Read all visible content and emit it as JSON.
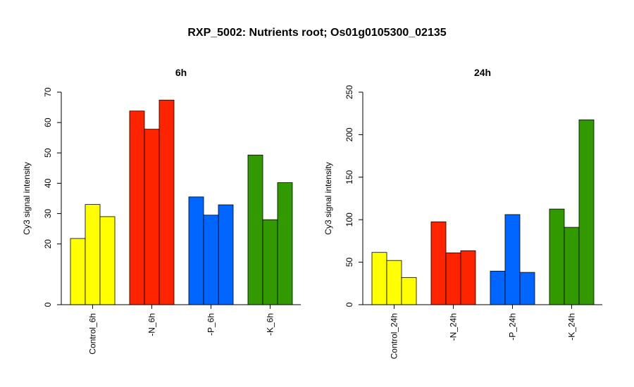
{
  "title": "RXP_5002: Nutrients root; Os01g0105300_02135",
  "chart_data": [
    {
      "type": "bar",
      "title": "6h",
      "ylabel": "Cy3 signal intensity",
      "ylim": [
        0,
        70
      ],
      "yticks": [
        0,
        20,
        30,
        40,
        50,
        60,
        70
      ],
      "groups": [
        {
          "label": "Control_6h",
          "color": "#ffff00",
          "values": [
            21.8,
            33.0,
            29.0
          ]
        },
        {
          "label": "-N_6h",
          "color": "#ff2400",
          "values": [
            63.8,
            57.8,
            67.4
          ]
        },
        {
          "label": "-P_6h",
          "color": "#0066ff",
          "values": [
            35.5,
            29.5,
            32.9
          ]
        },
        {
          "label": "-K_6h",
          "color": "#339900",
          "values": [
            49.3,
            28.0,
            40.2
          ]
        }
      ]
    },
    {
      "type": "bar",
      "title": "24h",
      "ylabel": "Cy3 signal intensity",
      "ylim": [
        0,
        250
      ],
      "yticks": [
        0,
        50,
        100,
        150,
        200,
        250
      ],
      "groups": [
        {
          "label": "Control_24h",
          "color": "#ffff00",
          "values": [
            61.5,
            52.0,
            32.0
          ]
        },
        {
          "label": "-N_24h",
          "color": "#ff2400",
          "values": [
            97.5,
            61.0,
            63.5
          ]
        },
        {
          "label": "-P_24h",
          "color": "#0066ff",
          "values": [
            39.5,
            106.0,
            38.0
          ]
        },
        {
          "label": "-K_24h",
          "color": "#339900",
          "values": [
            112.5,
            91.0,
            217.5
          ]
        }
      ]
    }
  ]
}
